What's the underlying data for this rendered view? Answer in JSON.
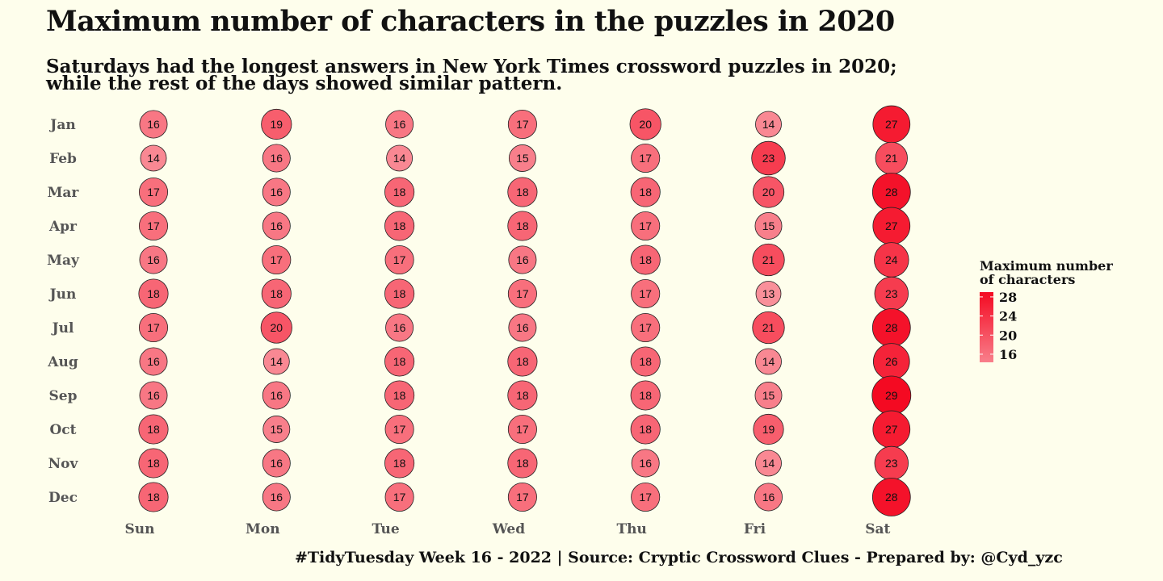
{
  "chart_data": {
    "type": "scatter",
    "title": "Maximum number of characters in the puzzles in 2020",
    "subtitle": "Saturdays had the longest answers in New York Times crossword puzzles in 2020; while the rest of the days showed similar pattern.",
    "caption": "#TidyTuesday Week 16 - 2022 | Source: Cryptic Crossword Clues - Prepared by: @Cyd_yzc",
    "x_categories": [
      "Sun",
      "Mon",
      "Tue",
      "Wed",
      "Thu",
      "Fri",
      "Sat"
    ],
    "y_categories": [
      "Jan",
      "Feb",
      "Mar",
      "Apr",
      "May",
      "Jun",
      "Jul",
      "Aug",
      "Sep",
      "Oct",
      "Nov",
      "Dec"
    ],
    "values": [
      [
        16,
        19,
        16,
        17,
        20,
        14,
        27
      ],
      [
        14,
        16,
        14,
        15,
        17,
        23,
        21
      ],
      [
        17,
        16,
        18,
        18,
        18,
        20,
        28
      ],
      [
        17,
        16,
        18,
        18,
        17,
        15,
        27
      ],
      [
        16,
        17,
        17,
        16,
        18,
        21,
        24
      ],
      [
        18,
        18,
        18,
        17,
        17,
        13,
        23
      ],
      [
        17,
        20,
        16,
        16,
        17,
        21,
        28
      ],
      [
        16,
        14,
        18,
        18,
        18,
        14,
        26
      ],
      [
        16,
        16,
        18,
        18,
        18,
        15,
        29
      ],
      [
        18,
        15,
        17,
        17,
        18,
        19,
        27
      ],
      [
        18,
        16,
        18,
        18,
        16,
        14,
        23
      ],
      [
        18,
        16,
        17,
        17,
        17,
        16,
        28
      ]
    ],
    "value_range": [
      13,
      29
    ],
    "color_scale": {
      "low": "#f9909a",
      "high": "#f40a22"
    },
    "legend": {
      "title": "Maximum number of characters",
      "title_lines": [
        "Maximum number",
        "of characters"
      ],
      "ticks": [
        16,
        20,
        24,
        28
      ],
      "placement": "right"
    },
    "grid": false
  }
}
